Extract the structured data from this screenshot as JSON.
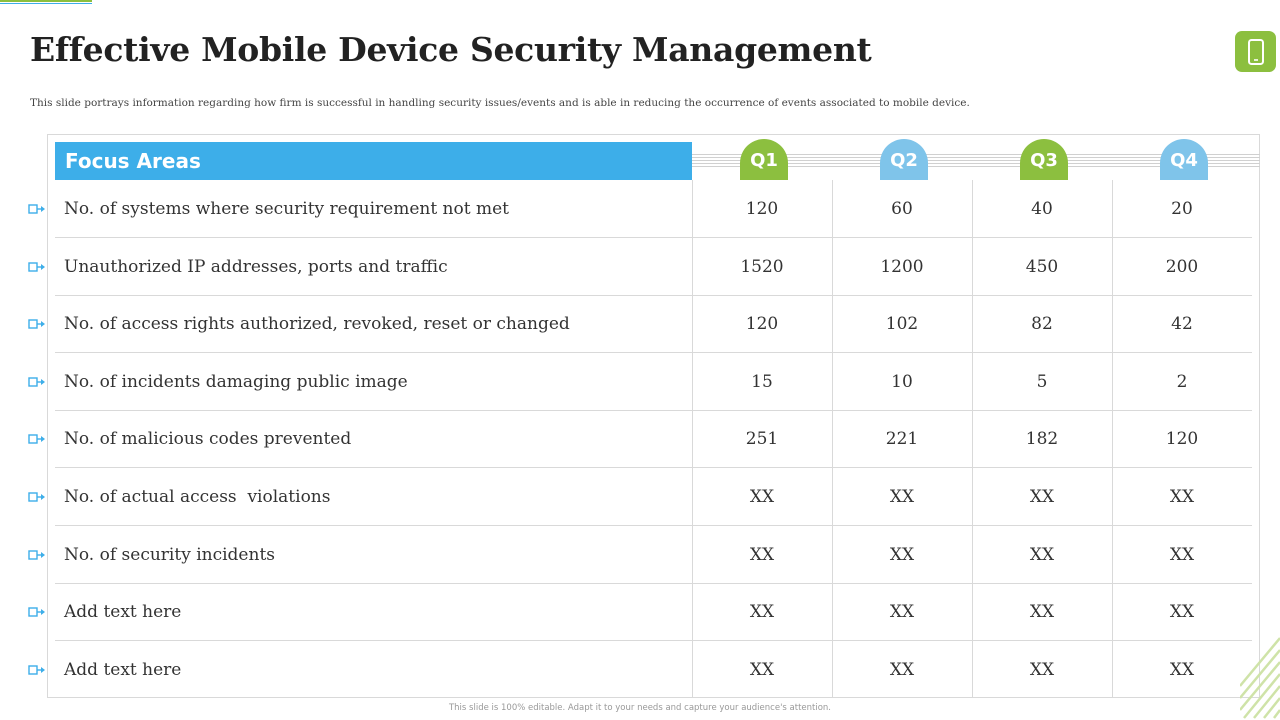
{
  "slide": {
    "title": "Effective Mobile Device Security Management",
    "subtitle": "This slide portrays information regarding how firm is successful in handling security issues/events and is able in reducing the occurrence of events associated to mobile device.",
    "footer": "This slide is 100% editable. Adapt it to your needs and capture your audience's attention.",
    "badge_icon": "mobile-phone-icon"
  },
  "colors": {
    "accent_green": "#8cbf3f",
    "accent_blue": "#3daee9",
    "light_blue": "#7fc4ea"
  },
  "table": {
    "header_label": "Focus Areas",
    "quarters": [
      "Q1",
      "Q2",
      "Q3",
      "Q4"
    ],
    "row_icon": "arrow-marker-icon",
    "rows": [
      {
        "label": "No. of systems where security requirement not met",
        "values": [
          "120",
          "60",
          "40",
          "20"
        ]
      },
      {
        "label": "Unauthorized IP addresses, ports and traffic",
        "values": [
          "1520",
          "1200",
          "450",
          "200"
        ]
      },
      {
        "label": "No. of access rights authorized, revoked, reset or changed",
        "values": [
          "120",
          "102",
          "82",
          "42"
        ]
      },
      {
        "label": "No. of incidents damaging public image",
        "values": [
          "15",
          "10",
          "5",
          "2"
        ]
      },
      {
        "label": "No. of malicious codes prevented",
        "values": [
          "251",
          "221",
          "182",
          "120"
        ]
      },
      {
        "label": "No. of actual access  violations",
        "values": [
          "XX",
          "XX",
          "XX",
          "XX"
        ]
      },
      {
        "label": "No. of security incidents",
        "values": [
          "XX",
          "XX",
          "XX",
          "XX"
        ]
      },
      {
        "label": "Add text here",
        "values": [
          "XX",
          "XX",
          "XX",
          "XX"
        ]
      },
      {
        "label": "Add text here",
        "values": [
          "XX",
          "XX",
          "XX",
          "XX"
        ]
      }
    ]
  }
}
